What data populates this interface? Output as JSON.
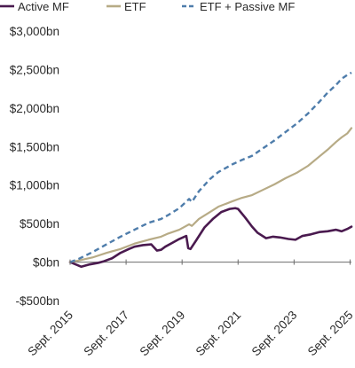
{
  "chart_data": {
    "type": "line",
    "title": "",
    "xlabel": "",
    "ylabel": "",
    "ylim": [
      -500,
      3000
    ],
    "xlim": [
      2015.7,
      2025.75
    ],
    "y_ticks": [
      {
        "value": 3000,
        "label": "$3,000bn"
      },
      {
        "value": 2500,
        "label": "$2,500bn"
      },
      {
        "value": 2000,
        "label": "$2,000bn"
      },
      {
        "value": 1500,
        "label": "$1,500bn"
      },
      {
        "value": 1000,
        "label": "$1,000bn"
      },
      {
        "value": 500,
        "label": "$500bn"
      },
      {
        "value": 0,
        "label": "$0bn"
      },
      {
        "value": -500,
        "label": "-$500bn"
      }
    ],
    "x_ticks": [
      {
        "value": 2015.7,
        "label": "Sept. 2015"
      },
      {
        "value": 2017.7,
        "label": "Sept. 2017"
      },
      {
        "value": 2019.7,
        "label": "Sept. 2019"
      },
      {
        "value": 2021.7,
        "label": "Sept. 2021"
      },
      {
        "value": 2023.7,
        "label": "Sept. 2023"
      },
      {
        "value": 2025.7,
        "label": "Sept. 2025"
      }
    ],
    "legend_position": "top",
    "zero_line": true,
    "series": [
      {
        "name": "Active MF",
        "color": "#4a1a4f",
        "dash": "solid",
        "x": [
          2015.7,
          2015.9,
          2016.1,
          2016.4,
          2016.7,
          2016.9,
          2017.2,
          2017.5,
          2017.8,
          2018.0,
          2018.3,
          2018.6,
          2018.8,
          2018.95,
          2019.1,
          2019.35,
          2019.6,
          2019.85,
          2019.92,
          2020.0,
          2020.2,
          2020.5,
          2020.8,
          2021.1,
          2021.4,
          2021.6,
          2021.7,
          2021.95,
          2022.2,
          2022.4,
          2022.7,
          2022.95,
          2023.2,
          2023.5,
          2023.75,
          2024.0,
          2024.3,
          2024.6,
          2024.9,
          2025.2,
          2025.4,
          2025.6,
          2025.75
        ],
        "values": [
          0,
          -30,
          -60,
          -30,
          -10,
          10,
          50,
          120,
          170,
          200,
          220,
          230,
          150,
          160,
          200,
          250,
          300,
          340,
          180,
          170,
          280,
          450,
          560,
          650,
          690,
          700,
          690,
          580,
          460,
          380,
          310,
          330,
          320,
          300,
          290,
          340,
          360,
          390,
          400,
          420,
          400,
          430,
          460
        ]
      },
      {
        "name": "ETF",
        "color": "#b7ab86",
        "dash": "solid",
        "x": [
          2015.7,
          2016.0,
          2016.5,
          2017.0,
          2017.5,
          2018.0,
          2018.5,
          2018.95,
          2019.2,
          2019.6,
          2019.95,
          2020.05,
          2020.3,
          2020.7,
          2021.0,
          2021.5,
          2021.8,
          2022.2,
          2022.6,
          2023.0,
          2023.4,
          2023.8,
          2024.2,
          2024.6,
          2024.9,
          2025.2,
          2025.4,
          2025.6,
          2025.75
        ],
        "values": [
          0,
          20,
          60,
          120,
          170,
          240,
          290,
          330,
          370,
          420,
          490,
          470,
          560,
          650,
          720,
          790,
          830,
          870,
          940,
          1010,
          1090,
          1160,
          1250,
          1370,
          1460,
          1560,
          1620,
          1670,
          1740
        ]
      },
      {
        "name": "ETF + Passive MF",
        "color": "#4f7dab",
        "dash": "dashed",
        "x": [
          2015.7,
          2016.0,
          2016.5,
          2017.0,
          2017.5,
          2018.0,
          2018.5,
          2018.95,
          2019.2,
          2019.6,
          2019.95,
          2020.05,
          2020.3,
          2020.7,
          2021.0,
          2021.5,
          2021.8,
          2022.2,
          2022.6,
          2023.0,
          2023.4,
          2023.8,
          2024.2,
          2024.6,
          2024.9,
          2025.2,
          2025.4,
          2025.6,
          2025.75
        ],
        "values": [
          0,
          40,
          130,
          230,
          330,
          420,
          510,
          560,
          610,
          700,
          820,
          780,
          920,
          1080,
          1170,
          1270,
          1320,
          1380,
          1480,
          1580,
          1690,
          1800,
          1930,
          2080,
          2200,
          2300,
          2380,
          2430,
          2460
        ]
      }
    ]
  }
}
